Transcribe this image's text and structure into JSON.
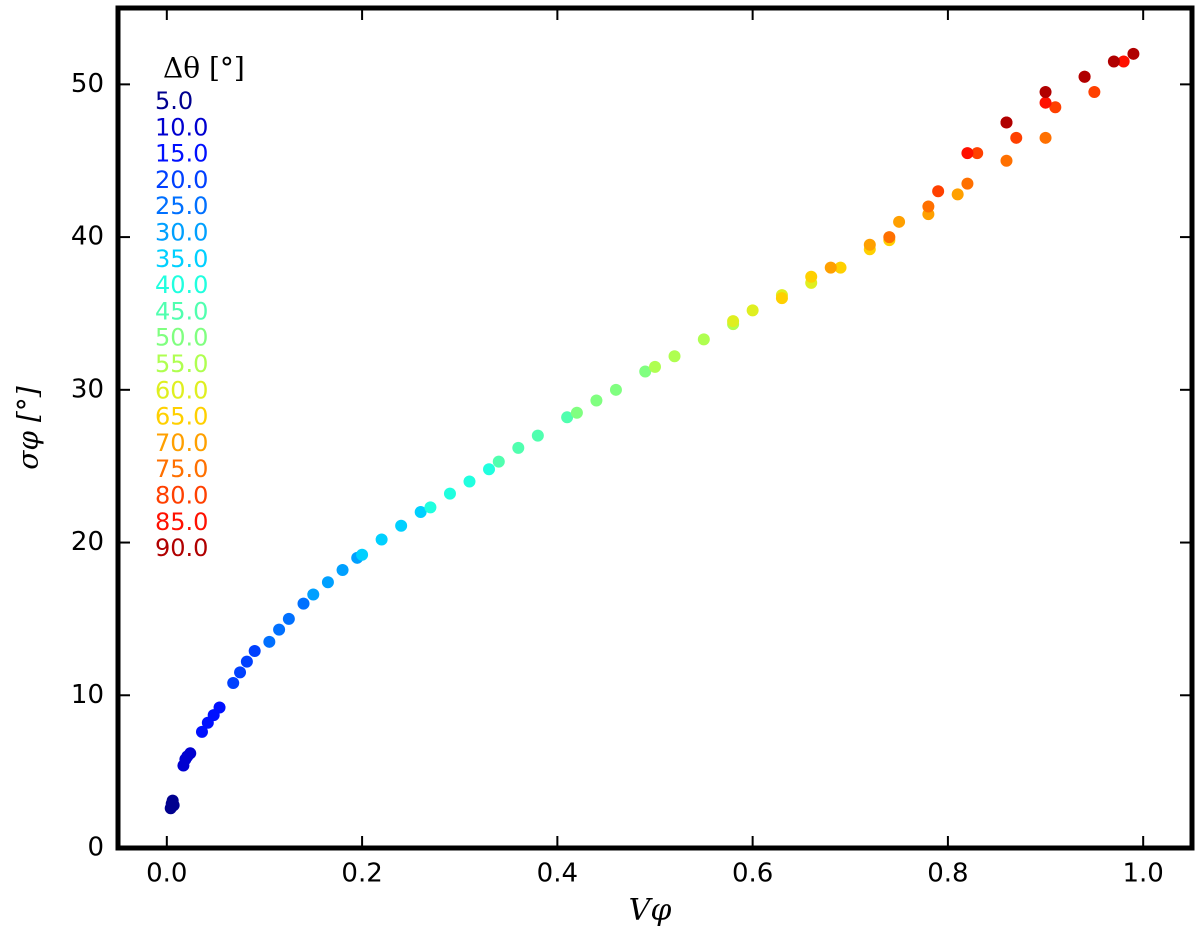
{
  "chart_data": {
    "type": "scatter",
    "x_label": "Vφ",
    "y_label": "σφ [°]",
    "legend_title": "Δθ [°]",
    "xlim": [
      -0.05,
      1.05
    ],
    "ylim": [
      0,
      55
    ],
    "xticks": [
      {
        "value": 0,
        "label": "0.0"
      },
      0.2,
      0.4,
      0.6,
      0.8,
      {
        "value": 1,
        "label": "1.0"
      }
    ],
    "yticks": [
      0,
      10,
      20,
      30,
      40,
      50
    ],
    "legend": "upper left",
    "series": [
      {
        "name": "5.0",
        "color": "#00008f",
        "x": [
          0.004,
          0.005,
          0.006,
          0.007
        ],
        "values": [
          2.6,
          2.9,
          3.1,
          2.8
        ]
      },
      {
        "name": "10.0",
        "color": "#0000d0",
        "x": [
          0.017,
          0.019,
          0.021,
          0.024
        ],
        "values": [
          5.4,
          5.8,
          6.0,
          6.2
        ]
      },
      {
        "name": "15.0",
        "color": "#0010ff",
        "x": [
          0.036,
          0.042,
          0.048,
          0.054
        ],
        "values": [
          7.6,
          8.2,
          8.7,
          9.2
        ]
      },
      {
        "name": "20.0",
        "color": "#0040ff",
        "x": [
          0.068,
          0.075,
          0.082,
          0.09
        ],
        "values": [
          10.8,
          11.5,
          12.2,
          12.9
        ]
      },
      {
        "name": "25.0",
        "color": "#0070ff",
        "x": [
          0.105,
          0.115,
          0.125,
          0.14
        ],
        "values": [
          13.5,
          14.3,
          15.0,
          16.0
        ]
      },
      {
        "name": "30.0",
        "color": "#00a0ff",
        "x": [
          0.15,
          0.165,
          0.18,
          0.195
        ],
        "values": [
          16.6,
          17.4,
          18.2,
          19.0
        ]
      },
      {
        "name": "35.0",
        "color": "#00d0ff",
        "x": [
          0.2,
          0.22,
          0.24,
          0.26
        ],
        "values": [
          19.2,
          20.2,
          21.1,
          22.0
        ]
      },
      {
        "name": "40.0",
        "color": "#20ffdf",
        "x": [
          0.27,
          0.29,
          0.31,
          0.33
        ],
        "values": [
          22.3,
          23.2,
          24.0,
          24.8
        ]
      },
      {
        "name": "45.0",
        "color": "#50ffaf",
        "x": [
          0.34,
          0.36,
          0.38,
          0.41
        ],
        "values": [
          25.3,
          26.2,
          27.0,
          28.2
        ]
      },
      {
        "name": "50.0",
        "color": "#80ff80",
        "x": [
          0.42,
          0.44,
          0.46,
          0.49
        ],
        "values": [
          28.5,
          29.3,
          30.0,
          31.2
        ]
      },
      {
        "name": "55.0",
        "color": "#afff50",
        "x": [
          0.5,
          0.52,
          0.55,
          0.58
        ],
        "values": [
          31.5,
          32.2,
          33.3,
          34.3
        ]
      },
      {
        "name": "60.0",
        "color": "#dfef20",
        "x": [
          0.58,
          0.6,
          0.63,
          0.66
        ],
        "values": [
          34.5,
          35.2,
          36.2,
          37.0
        ]
      },
      {
        "name": "65.0",
        "color": "#ffd000",
        "x": [
          0.63,
          0.66,
          0.69,
          0.72,
          0.74
        ],
        "values": [
          36.0,
          37.4,
          38.0,
          39.2,
          39.8
        ]
      },
      {
        "name": "70.0",
        "color": "#ffa000",
        "x": [
          0.68,
          0.72,
          0.75,
          0.78,
          0.81
        ],
        "values": [
          38.0,
          39.5,
          41.0,
          41.5,
          42.8
        ]
      },
      {
        "name": "75.0",
        "color": "#ff7000",
        "x": [
          0.74,
          0.78,
          0.82,
          0.86,
          0.9
        ],
        "values": [
          40.0,
          42.0,
          43.5,
          45.0,
          46.5
        ]
      },
      {
        "name": "80.0",
        "color": "#ff4000",
        "x": [
          0.79,
          0.83,
          0.87,
          0.91,
          0.95
        ],
        "values": [
          43.0,
          45.5,
          46.5,
          48.5,
          49.5
        ]
      },
      {
        "name": "85.0",
        "color": "#ff1000",
        "x": [
          0.82,
          0.86,
          0.9,
          0.94,
          0.98
        ],
        "values": [
          45.5,
          47.5,
          48.8,
          50.5,
          51.5
        ]
      },
      {
        "name": "90.0",
        "color": "#b00000",
        "x": [
          0.86,
          0.9,
          0.94,
          0.97,
          0.99
        ],
        "values": [
          47.5,
          49.5,
          50.5,
          51.5,
          52.0
        ]
      }
    ]
  }
}
